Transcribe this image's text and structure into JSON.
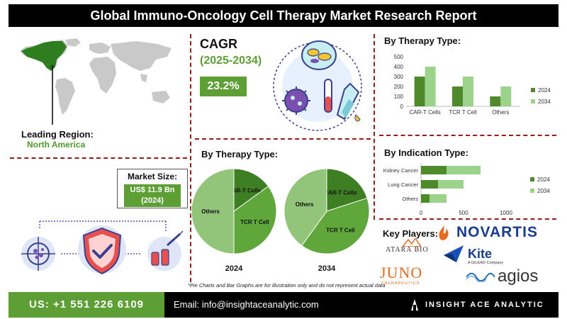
{
  "header": {
    "title": "Global Immuno-Oncology Cell Therapy Market Research Report"
  },
  "region": {
    "label": "Leading Region:",
    "value": "North America"
  },
  "cagr": {
    "title": "CAGR",
    "period": "(2025-2034)",
    "value": "23.2%"
  },
  "market_size": {
    "label": "Market Size:",
    "value_line1": "US$ 11.9 Bn",
    "value_line2": "(2024)"
  },
  "pies": {
    "title": "By Therapy Type:",
    "year_left": "2024",
    "year_right": "2034"
  },
  "key_players": {
    "label": "Key Players:",
    "logos": [
      "NOVARTIS",
      "ATARA BIO",
      "Kite",
      "A GILEAD Company",
      "JUNO",
      "THERAPEUTICS",
      "agios"
    ]
  },
  "disclaimer": "*Pie Charts and Bar Graphs are for illustration only and do not represent actual data",
  "footer": {
    "phone": "US: +1 551 226 6109",
    "email": "Email: info@insightaceanalytic.com",
    "brand": "INSIGHT ACE ANALYTIC"
  },
  "colors": {
    "dark_green": "#4e8a2b",
    "light_green": "#9bd38a",
    "accent_green": "#5d9e35",
    "divider": "#9b1b1b"
  },
  "chart_data": [
    {
      "type": "bar",
      "title": "By Therapy Type:",
      "categories": [
        "CAR-T Cells",
        "TCR T Cell",
        "Others"
      ],
      "series": [
        {
          "name": "2024",
          "values": [
            300,
            200,
            100
          ]
        },
        {
          "name": "2034",
          "values": [
            400,
            300,
            200
          ]
        }
      ],
      "ylim": [
        0,
        500
      ],
      "yticks": [
        "0",
        "100",
        "200",
        "300",
        "400",
        "500"
      ],
      "legend": "right"
    },
    {
      "type": "bar",
      "orientation": "horizontal",
      "title": "By Indication Type:",
      "categories": [
        "Kidney Cancer",
        "Lung Cancer",
        "Others"
      ],
      "series": [
        {
          "name": "2024",
          "values": [
            300,
            200,
            100
          ]
        },
        {
          "name": "2034",
          "values": [
            700,
            500,
            300
          ]
        }
      ],
      "xlim": [
        0,
        1000
      ],
      "xticks": [
        "0",
        "500",
        "1000"
      ],
      "legend": "right"
    },
    {
      "type": "pie",
      "title": "2024",
      "labels": [
        "CAR-T Cells",
        "TCR T Cell",
        "Others"
      ],
      "values": [
        15,
        35,
        50
      ]
    },
    {
      "type": "pie",
      "title": "2034",
      "labels": [
        "CAR-T Cells",
        "TCR T Cell",
        "Others"
      ],
      "values": [
        20,
        40,
        40
      ]
    }
  ]
}
